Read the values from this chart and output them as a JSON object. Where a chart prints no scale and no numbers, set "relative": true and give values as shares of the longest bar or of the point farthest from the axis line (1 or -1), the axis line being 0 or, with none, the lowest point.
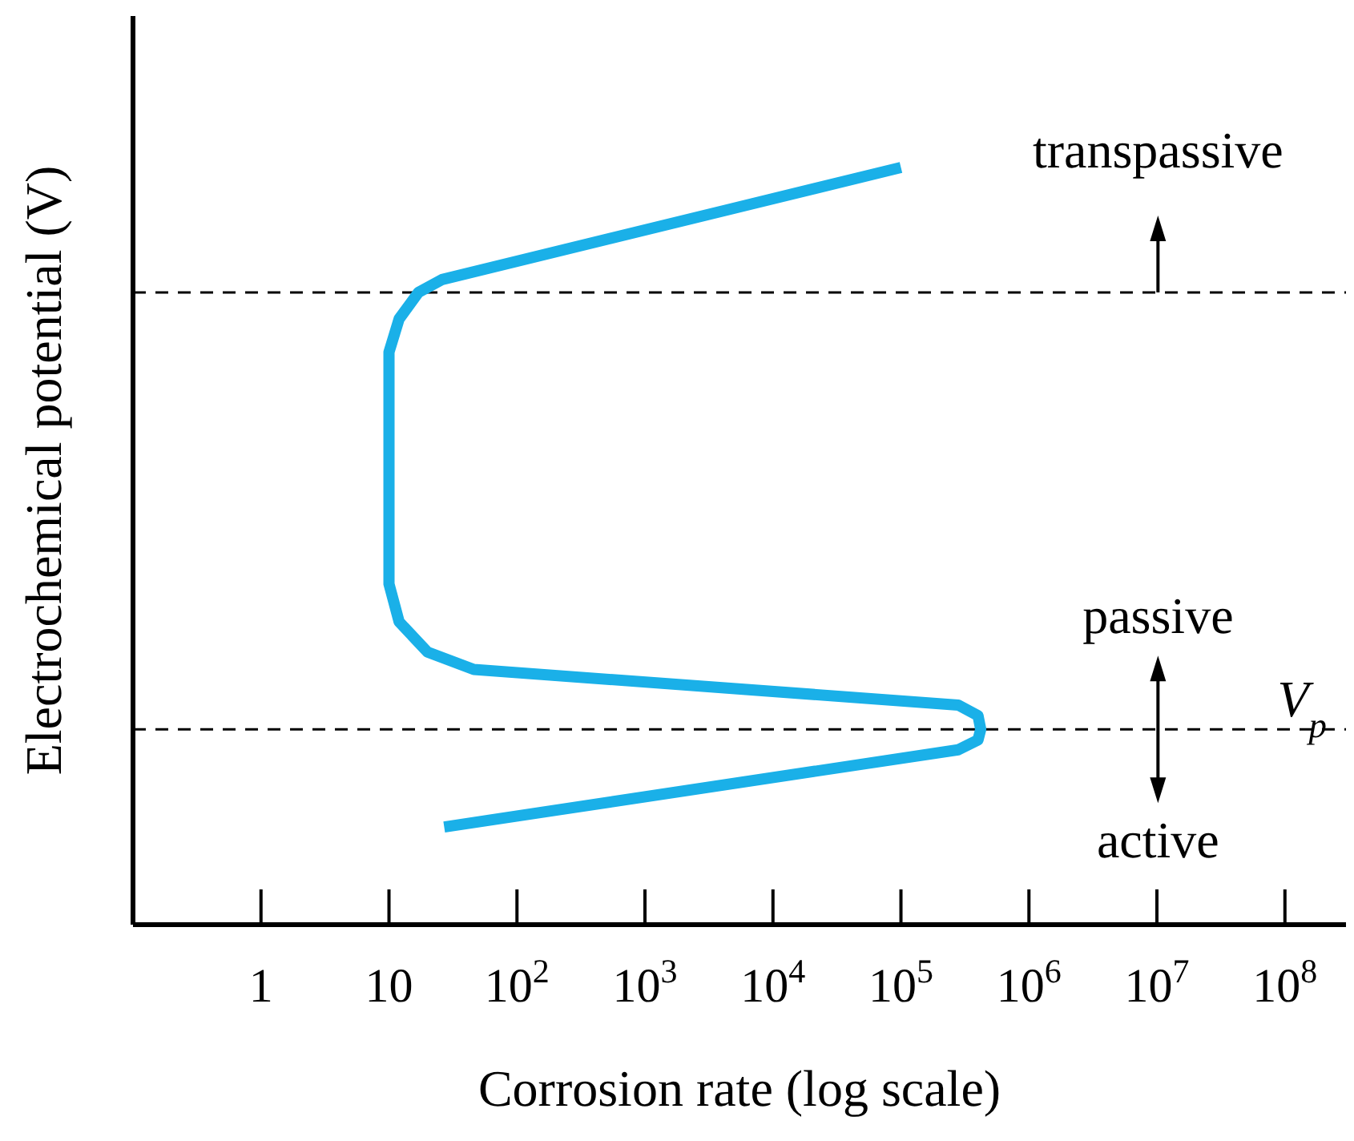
{
  "chart_data": {
    "type": "line",
    "xlabel": "Corrosion rate (log scale)",
    "ylabel": "Electrochemical potential (V)",
    "log": "x",
    "relative": true,
    "xlim": [
      0.1,
      300000000
    ],
    "xticks": [
      1,
      10,
      {
        "value": 100,
        "label": "10$^{2}$"
      },
      {
        "value": 1000,
        "label": "10$^{3}$"
      },
      {
        "value": 10000,
        "label": "10$^{4}$"
      },
      {
        "value": 100000,
        "label": "10$^{5}$"
      },
      {
        "value": 1000000,
        "label": "10$^{6}$"
      },
      {
        "value": 10000000,
        "label": "10$^{7}$"
      },
      {
        "value": 100000000,
        "label": "10$^{8}$"
      }
    ],
    "x": [
      27,
      280000,
      400000,
      420000,
      400000,
      280000,
      46,
      20,
      12,
      10,
      10,
      12,
      17,
      26,
      100000
    ],
    "series": [
      {
        "color": "#1ab0e8",
        "values": [
          0.129,
          0.231,
          0.244,
          0.258,
          0.276,
          0.29,
          0.337,
          0.36,
          0.4,
          0.45,
          0.756,
          0.8,
          0.835,
          0.852,
          1.0
        ]
      }
    ],
    "ref_lines": [
      {
        "axis": "y",
        "value": 0.258,
        "label": "V$_{p}$",
        "color": "#000000",
        "line_style": "dashed"
      },
      {
        "axis": "y",
        "value": 0.835,
        "color": "#000000",
        "line_style": "dashed"
      }
    ],
    "annotations": [
      "transpassive",
      "passive",
      "active"
    ]
  }
}
